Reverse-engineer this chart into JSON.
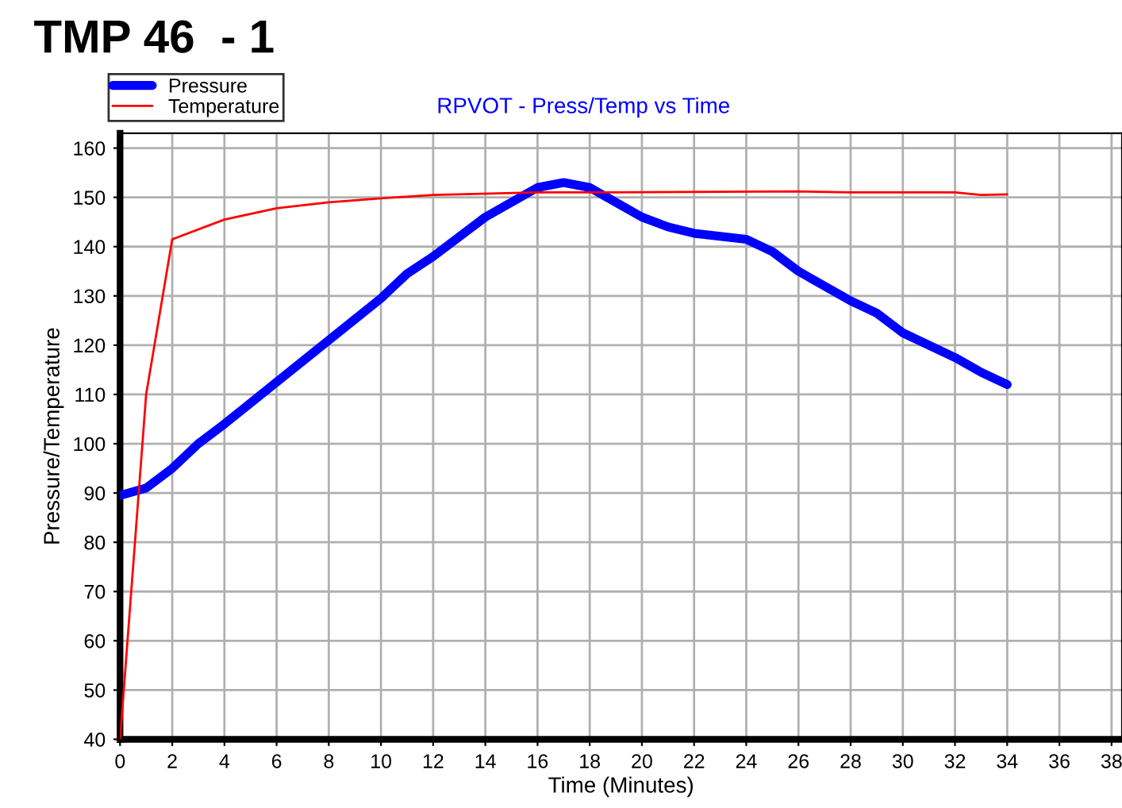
{
  "chart_data": {
    "type": "line",
    "title": "TMP 46  - 1",
    "subtitle": "RPVOT - Press/Temp vs Time",
    "xlabel": "Time (Minutes)",
    "ylabel": "Pressure/Temperature",
    "xlim": [
      0,
      38.4
    ],
    "xticks": [
      0,
      2,
      4,
      6,
      8,
      10,
      12,
      14,
      16,
      18,
      20,
      22,
      24,
      26,
      28,
      30,
      32,
      34,
      36,
      38
    ],
    "ylim": [
      40,
      163
    ],
    "yticks": [
      40,
      50,
      60,
      70,
      80,
      90,
      100,
      110,
      120,
      130,
      140,
      150,
      160
    ],
    "grid": true,
    "legend": "top left",
    "marker": "none",
    "line_style": "solid",
    "series": [
      {
        "name": "Pressure",
        "color": "#0000ff",
        "x": [
          0,
          1,
          2,
          3,
          4,
          6,
          8,
          10,
          11,
          12,
          14,
          16,
          17,
          18,
          19,
          20,
          21,
          22,
          24,
          25,
          26,
          28,
          29,
          30,
          32,
          33,
          34
        ],
        "values": [
          89.5,
          91,
          95,
          100,
          104,
          112.5,
          121,
          129.5,
          134.5,
          138,
          146,
          152,
          153,
          152,
          149,
          146,
          144,
          142.7,
          141.5,
          139,
          135,
          129,
          126.5,
          122.5,
          117.5,
          114.5,
          112
        ]
      },
      {
        "name": "Temperature",
        "color": "#ff0000",
        "x": [
          0,
          1,
          2,
          4,
          6,
          8,
          10,
          12,
          16,
          18,
          26,
          28,
          32,
          33,
          34
        ],
        "values": [
          40,
          110,
          141.5,
          145.5,
          147.8,
          149,
          149.8,
          150.5,
          151,
          151,
          151.2,
          151,
          151,
          150.5,
          150.6
        ]
      }
    ]
  }
}
